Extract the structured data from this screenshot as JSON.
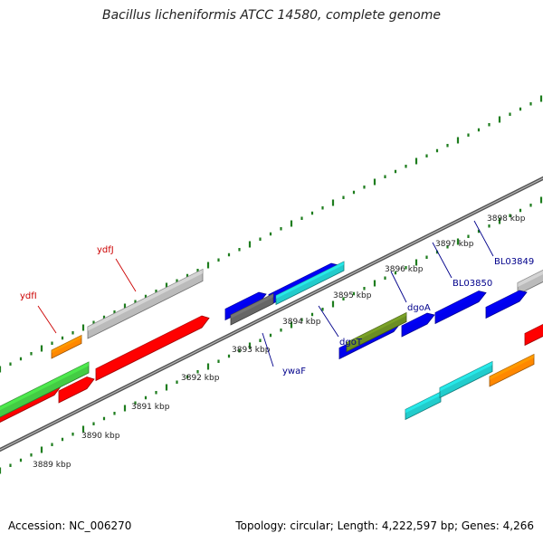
{
  "title": "Bacillus licheniformis ATCC 14580, complete genome",
  "footer": {
    "accession": "Accession: NC_006270",
    "summary": "Topology: circular; Length: 4,222,597 bp; Genes: 4,266"
  },
  "colors": {
    "backbone": "#777777",
    "gc_ticks": "#1e7d1e",
    "red": "#ff0000",
    "gray": "#bbbbbb",
    "green": "#44cc44",
    "orange": "#ff8800",
    "blue": "#0000ee",
    "darkgray": "#666666",
    "cyan": "#22cccc",
    "olive": "#6b8e23",
    "navy_label": "#00008b",
    "red_label": "#cc0000"
  },
  "scale": {
    "ticks": [
      {
        "label": "3889 kbp"
      },
      {
        "label": "3890 kbp"
      },
      {
        "label": "3891 kbp"
      },
      {
        "label": "3892 kbp"
      },
      {
        "label": "3893 kbp"
      },
      {
        "label": "3894 kbp"
      },
      {
        "label": "3895 kbp"
      },
      {
        "label": "3896 kbp"
      },
      {
        "label": "3897 kbp"
      },
      {
        "label": "3898 kbp"
      }
    ]
  },
  "gene_labels": [
    {
      "name": "ydfI",
      "color": "red_label"
    },
    {
      "name": "ydfJ",
      "color": "red_label"
    },
    {
      "name": "ywaF",
      "color": "navy_label"
    },
    {
      "name": "dgoT",
      "color": "navy_label"
    },
    {
      "name": "dgoA",
      "color": "navy_label"
    },
    {
      "name": "BL03850",
      "color": "navy_label"
    },
    {
      "name": "BL03849",
      "color": "navy_label"
    }
  ],
  "features": [
    {
      "name": "feature-red-1",
      "color": "red"
    },
    {
      "name": "feature-red-2",
      "color": "red"
    },
    {
      "name": "feature-red-3",
      "color": "red"
    },
    {
      "name": "feature-red-4",
      "color": "red"
    },
    {
      "name": "feature-green-1",
      "color": "green"
    },
    {
      "name": "feature-orange-1",
      "color": "orange"
    },
    {
      "name": "feature-gray-1",
      "color": "gray"
    },
    {
      "name": "feature-gray-2",
      "color": "gray"
    },
    {
      "name": "feature-blue-1",
      "color": "blue"
    },
    {
      "name": "feature-blue-2",
      "color": "blue"
    },
    {
      "name": "feature-blue-3",
      "color": "blue"
    },
    {
      "name": "feature-blue-4",
      "color": "blue"
    },
    {
      "name": "feature-blue-5",
      "color": "blue"
    },
    {
      "name": "feature-blue-6",
      "color": "blue"
    },
    {
      "name": "feature-darkgray-1",
      "color": "darkgray"
    },
    {
      "name": "feature-cyan-1",
      "color": "cyan"
    },
    {
      "name": "feature-cyan-2",
      "color": "cyan"
    },
    {
      "name": "feature-cyan-3",
      "color": "cyan"
    },
    {
      "name": "feature-olive-1",
      "color": "olive"
    },
    {
      "name": "feature-orange-2",
      "color": "orange"
    }
  ]
}
